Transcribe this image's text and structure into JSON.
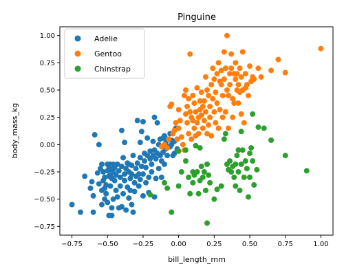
{
  "chart_data": {
    "type": "scatter",
    "title": "Pinguine",
    "xlabel": "bill_length_mm",
    "ylabel": "body_mass_kg",
    "xlim": [
      -0.835,
      1.085
    ],
    "ylim": [
      -0.83,
      1.08
    ],
    "xticks": [
      -0.75,
      -0.5,
      -0.25,
      0.0,
      0.25,
      0.5,
      0.75,
      1.0
    ],
    "xtick_labels": [
      "−0.75",
      "−0.50",
      "−0.25",
      "0.00",
      "0.25",
      "0.50",
      "0.75",
      "1.00"
    ],
    "yticks": [
      -0.75,
      -0.5,
      -0.25,
      0.0,
      0.25,
      0.5,
      0.75,
      1.0
    ],
    "ytick_labels": [
      "−0.75",
      "−0.50",
      "−0.25",
      "0.00",
      "0.25",
      "0.50",
      "0.75",
      "1.00"
    ],
    "grid": false,
    "legend_position": "top-left",
    "series": [
      {
        "name": "Adelie",
        "color": "#1f77b4",
        "points": [
          [
            -0.75,
            -0.55
          ],
          [
            -0.69,
            -0.62
          ],
          [
            -0.66,
            -0.29
          ],
          [
            -0.62,
            -0.4
          ],
          [
            -0.61,
            -0.34
          ],
          [
            -0.6,
            -0.47
          ],
          [
            -0.6,
            -0.62
          ],
          [
            -0.59,
            0.09
          ],
          [
            -0.57,
            -0.26
          ],
          [
            -0.56,
            0.0
          ],
          [
            -0.56,
            -0.36
          ],
          [
            -0.55,
            -0.22
          ],
          [
            -0.54,
            -0.18
          ],
          [
            -0.54,
            -0.42
          ],
          [
            -0.54,
            -0.55
          ],
          [
            -0.53,
            -0.25
          ],
          [
            -0.53,
            -0.33
          ],
          [
            -0.52,
            -0.3
          ],
          [
            -0.52,
            -0.4
          ],
          [
            -0.52,
            -0.5
          ],
          [
            -0.51,
            -0.37
          ],
          [
            -0.51,
            -0.45
          ],
          [
            -0.5,
            -0.18
          ],
          [
            -0.5,
            -0.24
          ],
          [
            -0.5,
            -0.53
          ],
          [
            -0.49,
            -0.2
          ],
          [
            -0.49,
            -0.29
          ],
          [
            -0.49,
            -0.65
          ],
          [
            -0.48,
            -0.18
          ],
          [
            -0.48,
            -0.28
          ],
          [
            -0.48,
            -0.38
          ],
          [
            -0.47,
            -0.23
          ],
          [
            -0.47,
            -0.31
          ],
          [
            -0.47,
            -0.58
          ],
          [
            -0.47,
            -0.65
          ],
          [
            -0.46,
            -0.18
          ],
          [
            -0.46,
            -0.25
          ],
          [
            -0.46,
            -0.5
          ],
          [
            -0.45,
            -0.21
          ],
          [
            -0.45,
            -0.33
          ],
          [
            -0.44,
            -0.28
          ],
          [
            -0.44,
            -0.42
          ],
          [
            -0.43,
            -0.18
          ],
          [
            -0.43,
            -0.48
          ],
          [
            -0.42,
            -0.58
          ],
          [
            -0.42,
            -0.24
          ],
          [
            -0.41,
            -0.38
          ],
          [
            -0.41,
            -0.3
          ],
          [
            -0.4,
            -0.2
          ],
          [
            -0.4,
            0.13
          ],
          [
            -0.4,
            -0.57
          ],
          [
            -0.39,
            -0.12
          ],
          [
            -0.39,
            -0.45
          ],
          [
            -0.38,
            0.02
          ],
          [
            -0.38,
            -0.27
          ],
          [
            -0.38,
            -0.33
          ],
          [
            -0.37,
            -0.22
          ],
          [
            -0.37,
            -0.6
          ],
          [
            -0.36,
            -0.39
          ],
          [
            -0.36,
            -0.17
          ],
          [
            -0.35,
            -0.25
          ],
          [
            -0.35,
            -0.49
          ],
          [
            -0.35,
            -0.18
          ],
          [
            -0.34,
            -0.31
          ],
          [
            -0.34,
            -0.42
          ],
          [
            -0.33,
            -0.55
          ],
          [
            -0.33,
            -0.27
          ],
          [
            -0.33,
            -0.19
          ],
          [
            -0.32,
            -0.1
          ],
          [
            -0.32,
            -0.62
          ],
          [
            -0.31,
            -0.35
          ],
          [
            -0.31,
            -0.43
          ],
          [
            -0.3,
            -0.22
          ],
          [
            -0.3,
            -0.29
          ],
          [
            -0.29,
            0.22
          ],
          [
            -0.29,
            -0.17
          ],
          [
            -0.28,
            -0.38
          ],
          [
            -0.28,
            -0.27
          ],
          [
            -0.27,
            0.02
          ],
          [
            -0.27,
            -0.12
          ],
          [
            -0.27,
            -0.32
          ],
          [
            -0.26,
            -0.2
          ],
          [
            -0.26,
            0.12
          ],
          [
            -0.25,
            0.21
          ],
          [
            -0.25,
            -0.27
          ],
          [
            -0.25,
            -0.47
          ],
          [
            -0.24,
            -0.08
          ],
          [
            -0.24,
            -0.15
          ],
          [
            -0.23,
            -0.35
          ],
          [
            -0.23,
            -0.21
          ],
          [
            -0.22,
            0.06
          ],
          [
            -0.22,
            -0.1
          ],
          [
            -0.21,
            -0.3
          ],
          [
            -0.21,
            -0.44
          ],
          [
            -0.2,
            -0.06
          ],
          [
            -0.2,
            -0.13
          ],
          [
            -0.19,
            -0.18
          ],
          [
            -0.19,
            -0.25
          ],
          [
            -0.18,
            -0.1
          ],
          [
            -0.18,
            0.03
          ],
          [
            -0.17,
            -0.48
          ],
          [
            -0.17,
            -0.05
          ],
          [
            -0.17,
            0.25
          ],
          [
            -0.16,
            -0.31
          ],
          [
            -0.16,
            -0.13
          ],
          [
            -0.15,
            0.2
          ],
          [
            -0.15,
            -0.08
          ],
          [
            -0.14,
            0.0
          ],
          [
            -0.14,
            -0.22
          ],
          [
            -0.13,
            -0.1
          ],
          [
            -0.13,
            0.05
          ],
          [
            -0.12,
            -0.15
          ],
          [
            -0.12,
            -0.3
          ],
          [
            -0.11,
            0.06
          ],
          [
            -0.11,
            -0.07
          ],
          [
            -0.1,
            0.08
          ],
          [
            -0.1,
            -0.18
          ],
          [
            -0.09,
            -0.04
          ],
          [
            -0.09,
            0.02
          ],
          [
            -0.08,
            -0.1
          ],
          [
            -0.08,
            0.05
          ],
          [
            -0.07,
            -0.02
          ],
          [
            -0.06,
            0.1
          ],
          [
            -0.06,
            -0.02
          ],
          [
            -0.05,
            0.0
          ],
          [
            -0.04,
            -0.1
          ],
          [
            -0.03,
            0.03
          ],
          [
            -0.02,
            0.15
          ],
          [
            -0.01,
            -0.04
          ],
          [
            -0.03,
            -0.08
          ],
          [
            -0.05,
            0.04
          ]
        ]
      },
      {
        "name": "Gentoo",
        "color": "#ff7f0e",
        "points": [
          [
            -0.12,
            -0.02
          ],
          [
            -0.1,
            0.0
          ],
          [
            -0.08,
            -0.03
          ],
          [
            -0.07,
            0.05
          ],
          [
            -0.06,
            0.35
          ],
          [
            -0.05,
            0.37
          ],
          [
            -0.04,
            0.1
          ],
          [
            -0.03,
            0.13
          ],
          [
            -0.02,
            0.2
          ],
          [
            -0.01,
            0.05
          ],
          [
            0.0,
            0.15
          ],
          [
            0.0,
            0.32
          ],
          [
            0.01,
            0.22
          ],
          [
            0.02,
            0.07
          ],
          [
            0.03,
            0.0
          ],
          [
            0.04,
            0.45
          ],
          [
            0.04,
            -0.05
          ],
          [
            0.05,
            0.5
          ],
          [
            0.05,
            0.28
          ],
          [
            0.06,
            0.2
          ],
          [
            0.06,
            0.35
          ],
          [
            0.07,
            0.1
          ],
          [
            0.07,
            0.42
          ],
          [
            0.08,
            0.83
          ],
          [
            0.08,
            0.3
          ],
          [
            0.09,
            0.25
          ],
          [
            0.09,
            0.05
          ],
          [
            0.1,
            0.45
          ],
          [
            0.1,
            0.22
          ],
          [
            0.11,
            0.15
          ],
          [
            0.11,
            0.38
          ],
          [
            0.12,
            0.08
          ],
          [
            0.12,
            0.3
          ],
          [
            0.13,
            0.52
          ],
          [
            0.13,
            0.2
          ],
          [
            0.14,
            0.25
          ],
          [
            0.14,
            0.1
          ],
          [
            0.15,
            0.4
          ],
          [
            0.15,
            0.32
          ],
          [
            0.16,
            0.27
          ],
          [
            0.16,
            0.48
          ],
          [
            0.17,
            0.15
          ],
          [
            0.17,
            0.35
          ],
          [
            0.18,
            0.22
          ],
          [
            0.18,
            0.4
          ],
          [
            0.19,
            0.62
          ],
          [
            0.19,
            0.3
          ],
          [
            0.2,
            0.1
          ],
          [
            0.2,
            0.5
          ],
          [
            0.21,
            0.18
          ],
          [
            0.21,
            0.45
          ],
          [
            0.22,
            0.35
          ],
          [
            0.22,
            0.25
          ],
          [
            0.23,
            0.55
          ],
          [
            0.23,
            0.08
          ],
          [
            0.24,
            0.7
          ],
          [
            0.24,
            0.42
          ],
          [
            0.25,
            0.6
          ],
          [
            0.25,
            0.3
          ],
          [
            0.26,
            0.2
          ],
          [
            0.26,
            0.48
          ],
          [
            0.27,
            0.65
          ],
          [
            0.27,
            0.38
          ],
          [
            0.28,
            0.75
          ],
          [
            0.28,
            0.15
          ],
          [
            0.29,
            0.58
          ],
          [
            0.29,
            0.32
          ],
          [
            0.3,
            0.55
          ],
          [
            0.3,
            0.68
          ],
          [
            0.31,
            0.25
          ],
          [
            0.31,
            0.45
          ],
          [
            0.32,
            0.85
          ],
          [
            0.32,
            0.6
          ],
          [
            0.33,
            0.7
          ],
          [
            0.33,
            0.3
          ],
          [
            0.34,
            1.0
          ],
          [
            0.34,
            0.5
          ],
          [
            0.35,
            0.45
          ],
          [
            0.35,
            0.15
          ],
          [
            0.36,
            0.65
          ],
          [
            0.36,
            0.55
          ],
          [
            0.37,
            0.83
          ],
          [
            0.37,
            0.7
          ],
          [
            0.38,
            0.42
          ],
          [
            0.38,
            0.25
          ],
          [
            0.39,
            0.65
          ],
          [
            0.39,
            0.38
          ],
          [
            0.4,
            0.6
          ],
          [
            0.4,
            0.75
          ],
          [
            0.41,
            0.5
          ],
          [
            0.41,
            0.65
          ],
          [
            0.42,
            0.38
          ],
          [
            0.42,
            0.55
          ],
          [
            0.43,
            0.7
          ],
          [
            0.43,
            0.48
          ],
          [
            0.44,
            0.62
          ],
          [
            0.44,
            0.28
          ],
          [
            0.45,
            0.85
          ],
          [
            0.45,
            0.5
          ],
          [
            0.46,
            0.2
          ],
          [
            0.47,
            0.52
          ],
          [
            0.47,
            0.65
          ],
          [
            0.48,
            0.55
          ],
          [
            0.49,
            0.45
          ],
          [
            0.5,
            0.72
          ],
          [
            0.51,
            0.58
          ],
          [
            0.52,
            0.62
          ],
          [
            0.53,
            0.6
          ],
          [
            0.56,
            0.7
          ],
          [
            0.58,
            0.62
          ],
          [
            0.65,
            0.68
          ],
          [
            0.7,
            0.78
          ],
          [
            0.75,
            0.66
          ],
          [
            1.0,
            0.88
          ]
        ]
      },
      {
        "name": "Chinstrap",
        "color": "#2ca02c",
        "points": [
          [
            -0.2,
            -0.46
          ],
          [
            -0.1,
            -0.35
          ],
          [
            -0.08,
            -0.4
          ],
          [
            -0.05,
            -0.62
          ],
          [
            0.0,
            -0.38
          ],
          [
            0.02,
            -0.25
          ],
          [
            0.05,
            -0.15
          ],
          [
            0.07,
            -0.3
          ],
          [
            0.08,
            -0.45
          ],
          [
            0.1,
            -0.35
          ],
          [
            0.11,
            -0.28
          ],
          [
            0.12,
            -0.01
          ],
          [
            0.13,
            -0.25
          ],
          [
            0.14,
            -0.45
          ],
          [
            0.15,
            -0.33
          ],
          [
            0.16,
            -0.2
          ],
          [
            0.17,
            -0.3
          ],
          [
            0.18,
            -0.25
          ],
          [
            0.19,
            -0.42
          ],
          [
            0.2,
            -0.72
          ],
          [
            0.2,
            -0.18
          ],
          [
            0.21,
            -0.28
          ],
          [
            0.22,
            -0.35
          ],
          [
            0.25,
            -0.5
          ],
          [
            0.27,
            -0.41
          ],
          [
            0.3,
            -0.38
          ],
          [
            0.32,
            0.05
          ],
          [
            0.33,
            0.1
          ],
          [
            0.34,
            -0.18
          ],
          [
            0.35,
            -0.23
          ],
          [
            0.36,
            -0.15
          ],
          [
            0.37,
            -0.25
          ],
          [
            0.38,
            -0.2
          ],
          [
            0.39,
            -0.3
          ],
          [
            0.4,
            -0.18
          ],
          [
            0.4,
            -0.38
          ],
          [
            0.41,
            -0.1
          ],
          [
            0.42,
            -0.25
          ],
          [
            0.42,
            -0.05
          ],
          [
            0.43,
            -0.42
          ],
          [
            0.44,
            -0.18
          ],
          [
            0.44,
            0.12
          ],
          [
            0.45,
            -0.05
          ],
          [
            0.46,
            -0.3
          ],
          [
            0.47,
            -0.15
          ],
          [
            0.48,
            -0.22
          ],
          [
            0.49,
            -0.48
          ],
          [
            0.5,
            -0.08
          ],
          [
            0.5,
            -0.3
          ],
          [
            0.51,
            -0.03
          ],
          [
            0.52,
            -0.15
          ],
          [
            0.52,
            0.28
          ],
          [
            0.53,
            -0.37
          ],
          [
            0.55,
            -0.23
          ],
          [
            0.56,
            0.16
          ],
          [
            0.6,
            0.15
          ],
          [
            0.65,
            0.04
          ],
          [
            0.75,
            -0.1
          ],
          [
            0.9,
            -0.24
          ],
          [
            0.0,
            -0.06
          ],
          [
            0.05,
            -0.05
          ],
          [
            0.1,
            -0.25
          ],
          [
            0.15,
            -0.03
          ]
        ]
      }
    ]
  }
}
